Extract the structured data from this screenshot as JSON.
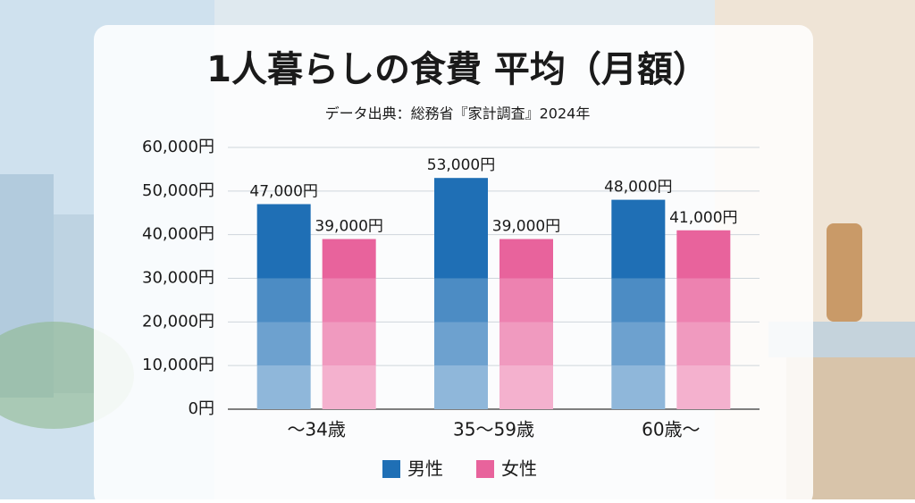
{
  "chart_data": {
    "type": "bar",
    "title": "1人暮らしの食費 平均（月額）",
    "subtitle": "データ出典：総務省『家計調査』2024年",
    "categories": [
      "～34歳",
      "35～59歳",
      "60歳～"
    ],
    "series": [
      {
        "name": "男性",
        "color": "#1f6fb5",
        "values": [
          47000,
          53000,
          48000
        ],
        "value_labels": [
          "47,000円",
          "53,000円",
          "48,000円"
        ]
      },
      {
        "name": "女性",
        "color": "#e8639c",
        "values": [
          39000,
          39000,
          41000
        ],
        "value_labels": [
          "39,000円",
          "39,000円",
          "41,000円"
        ]
      }
    ],
    "ylim": [
      0,
      60000
    ],
    "yticks": [
      {
        "value": 0,
        "label": "0円"
      },
      {
        "value": 10000,
        "label": "10,000円"
      },
      {
        "value": 20000,
        "label": "20,000円"
      },
      {
        "value": 30000,
        "label": "30,000円"
      },
      {
        "value": 40000,
        "label": "40,000円"
      },
      {
        "value": 50000,
        "label": "50,000円"
      },
      {
        "value": 60000,
        "label": "60,000円"
      }
    ],
    "grid": true,
    "legend": "bottom"
  }
}
